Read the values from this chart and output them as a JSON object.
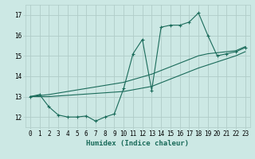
{
  "background_color": "#cce8e4",
  "grid_color": "#b0ccc8",
  "line_color": "#1a6b5a",
  "xlabel": "Humidex (Indice chaleur)",
  "ylim": [
    11.5,
    17.5
  ],
  "xlim": [
    -0.5,
    23.5
  ],
  "yticks": [
    12,
    13,
    14,
    15,
    16,
    17
  ],
  "xticks": [
    0,
    1,
    2,
    3,
    4,
    5,
    6,
    7,
    8,
    9,
    10,
    11,
    12,
    13,
    14,
    15,
    16,
    17,
    18,
    19,
    20,
    21,
    22,
    23
  ],
  "curve1_x": [
    0,
    1,
    2,
    3,
    4,
    5,
    6,
    7,
    8,
    9,
    10,
    11,
    12,
    13,
    14,
    15,
    16,
    17,
    18,
    19,
    20,
    21,
    22,
    23
  ],
  "curve1_y": [
    13.0,
    13.1,
    12.5,
    12.1,
    12.0,
    12.0,
    12.05,
    11.8,
    12.0,
    12.15,
    13.4,
    15.1,
    15.8,
    13.3,
    16.4,
    16.5,
    16.5,
    16.65,
    17.1,
    16.0,
    15.0,
    15.1,
    15.2,
    15.4
  ],
  "curve2_x": [
    0,
    1,
    2,
    10,
    13,
    18,
    19,
    20,
    21,
    22,
    23
  ],
  "curve2_y": [
    13.0,
    13.05,
    13.1,
    13.7,
    14.1,
    15.0,
    15.1,
    15.15,
    15.2,
    15.25,
    15.45
  ],
  "curve3_x": [
    0,
    1,
    2,
    10,
    13,
    18,
    19,
    20,
    21,
    22,
    23
  ],
  "curve3_y": [
    13.0,
    13.0,
    13.0,
    13.25,
    13.5,
    14.4,
    14.55,
    14.7,
    14.85,
    15.0,
    15.2
  ],
  "axis_fontsize": 6.5,
  "tick_fontsize": 5.5
}
